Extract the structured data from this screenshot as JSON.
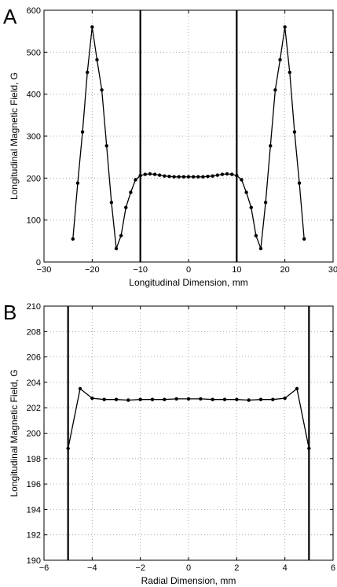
{
  "chart_data": [
    {
      "type": "line",
      "panel_label": "A",
      "xlabel": "Longitudinal Dimension, mm",
      "ylabel": "Longitudinal Magnetic Field, G",
      "xlim": [
        -30,
        30
      ],
      "ylim": [
        0,
        600
      ],
      "xticks": [
        -30,
        -20,
        -10,
        0,
        10,
        20,
        30
      ],
      "yticks": [
        0,
        100,
        200,
        300,
        400,
        500,
        600
      ],
      "xtick_labels": [
        "−30",
        "−20",
        "−10",
        "0",
        "10",
        "20",
        "30"
      ],
      "ytick_labels": [
        "0",
        "100",
        "200",
        "300",
        "400",
        "500",
        "600"
      ],
      "grid": true,
      "grid_style": "dotted",
      "vertical_lines": [
        -10,
        10
      ],
      "series": [
        {
          "color": "#000000",
          "marker": "dot",
          "x": [
            -24,
            -23,
            -22,
            -21,
            -20,
            -19,
            -18,
            -17,
            -16,
            -15,
            -14,
            -13,
            -12,
            -11,
            -10,
            -9,
            -8,
            -7,
            -6,
            -5,
            -4,
            -3,
            -2,
            -1,
            0,
            1,
            2,
            3,
            4,
            5,
            6,
            7,
            8,
            9,
            10,
            11,
            12,
            13,
            14,
            15,
            16,
            17,
            18,
            19,
            20,
            21,
            22,
            23,
            24
          ],
          "y": [
            55,
            188,
            310,
            452,
            560,
            482,
            410,
            277,
            142,
            32,
            63,
            130,
            166,
            196,
            206,
            209,
            210,
            209,
            207,
            205,
            204,
            203,
            203,
            203,
            203,
            203,
            203,
            203,
            204,
            205,
            207,
            209,
            210,
            209,
            206,
            196,
            166,
            130,
            63,
            32,
            142,
            277,
            410,
            482,
            560,
            452,
            310,
            188,
            55
          ]
        }
      ]
    },
    {
      "type": "line",
      "panel_label": "B",
      "xlabel": "Radial Dimension, mm",
      "ylabel": "Longitudinal Magnetic Field, G",
      "xlim": [
        -6,
        6
      ],
      "ylim": [
        190,
        210
      ],
      "xticks": [
        -6,
        -4,
        -2,
        0,
        2,
        4,
        6
      ],
      "yticks": [
        190,
        192,
        194,
        196,
        198,
        200,
        202,
        204,
        206,
        208,
        210
      ],
      "xtick_labels": [
        "−6",
        "−4",
        "−2",
        "0",
        "2",
        "4",
        "6"
      ],
      "ytick_labels": [
        "190",
        "192",
        "194",
        "196",
        "198",
        "200",
        "202",
        "204",
        "206",
        "208",
        "210"
      ],
      "grid": true,
      "grid_style": "dotted",
      "vertical_lines": [
        -5,
        5
      ],
      "series": [
        {
          "color": "#000000",
          "marker": "dot",
          "x": [
            -5,
            -4.5,
            -4,
            -3.5,
            -3,
            -2.5,
            -2,
            -1.5,
            -1,
            -0.5,
            0,
            0.5,
            1,
            1.5,
            2,
            2.5,
            3,
            3.5,
            4,
            4.5,
            5
          ],
          "y": [
            198.8,
            203.5,
            202.75,
            202.65,
            202.65,
            202.6,
            202.65,
            202.65,
            202.65,
            202.7,
            202.7,
            202.7,
            202.65,
            202.65,
            202.65,
            202.6,
            202.65,
            202.65,
            202.75,
            203.5,
            198.8
          ]
        }
      ]
    }
  ]
}
